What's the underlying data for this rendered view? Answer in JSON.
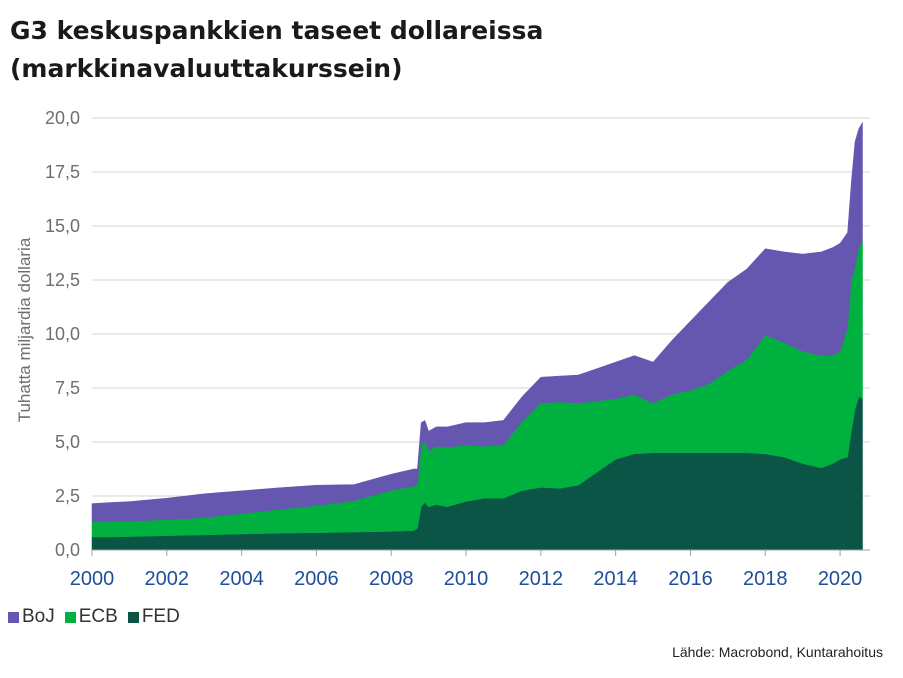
{
  "title": "G3 keskuspankkien taseet dollareissa (markkinavaluuttakurssein)",
  "source": "Lähde: Macrobond, Kuntarahoitus",
  "chart_data": {
    "type": "area",
    "stacked": true,
    "title": "G3 keskuspankkien taseet dollareissa (markkinavaluuttakurssein)",
    "xlabel": "",
    "ylabel": "Tuhatta miljardia dollaria",
    "xlim": [
      2000,
      2020.8
    ],
    "ylim": [
      0,
      20
    ],
    "x_ticks": [
      "2000",
      "2002",
      "2004",
      "2006",
      "2008",
      "2010",
      "2012",
      "2014",
      "2016",
      "2018",
      "2020"
    ],
    "y_ticks": [
      "0,0",
      "2,5",
      "5,0",
      "7,5",
      "10,0",
      "12,5",
      "15,0",
      "17,5",
      "20,0"
    ],
    "grid": "horizontal",
    "legend_position": "bottom-left",
    "x": [
      2000,
      2000.5,
      2001,
      2002,
      2003,
      2004,
      2005,
      2006,
      2007,
      2008,
      2008.6,
      2008.7,
      2008.8,
      2008.9,
      2009,
      2009.2,
      2009.5,
      2010,
      2010.5,
      2011,
      2011.5,
      2012,
      2012.5,
      2013,
      2013.5,
      2014,
      2014.5,
      2015,
      2015.5,
      2016,
      2016.5,
      2017,
      2017.5,
      2018,
      2018.5,
      2019,
      2019.5,
      2019.8,
      2020,
      2020.2,
      2020.3,
      2020.4,
      2020.5,
      2020.6
    ],
    "series": [
      {
        "name": "FED",
        "color": "#0a5546",
        "values": [
          0.6,
          0.6,
          0.62,
          0.66,
          0.7,
          0.74,
          0.78,
          0.8,
          0.83,
          0.86,
          0.9,
          1.0,
          2.0,
          2.2,
          2.0,
          2.1,
          2.0,
          2.25,
          2.4,
          2.4,
          2.75,
          2.9,
          2.85,
          3.0,
          3.6,
          4.2,
          4.45,
          4.5,
          4.5,
          4.5,
          4.5,
          4.5,
          4.5,
          4.45,
          4.3,
          4.0,
          3.8,
          4.0,
          4.2,
          4.3,
          5.5,
          6.5,
          7.1,
          7.0
        ]
      },
      {
        "name": "ECB",
        "color": "#00b140",
        "values": [
          0.7,
          0.7,
          0.72,
          0.74,
          0.8,
          0.95,
          1.1,
          1.25,
          1.45,
          1.9,
          2.05,
          2.0,
          2.9,
          2.8,
          2.6,
          2.7,
          2.75,
          2.6,
          2.4,
          2.45,
          3.2,
          3.9,
          4.0,
          3.8,
          3.3,
          2.8,
          2.75,
          2.3,
          2.7,
          2.9,
          3.2,
          3.8,
          4.3,
          5.5,
          5.3,
          5.2,
          5.2,
          5.0,
          5.0,
          6.0,
          7.0,
          6.6,
          6.9,
          7.3
        ]
      },
      {
        "name": "BoJ",
        "color": "#6556b0",
        "values": [
          0.85,
          0.9,
          0.9,
          1.0,
          1.1,
          1.05,
          1.0,
          0.95,
          0.75,
          0.75,
          0.8,
          0.75,
          1.0,
          1.0,
          0.9,
          0.9,
          0.95,
          1.05,
          1.1,
          1.15,
          1.15,
          1.2,
          1.2,
          1.3,
          1.5,
          1.7,
          1.8,
          1.9,
          2.5,
          3.2,
          3.8,
          4.1,
          4.2,
          4.0,
          4.2,
          4.5,
          4.8,
          5.0,
          5.0,
          4.4,
          4.5,
          5.8,
          5.5,
          5.5
        ]
      }
    ]
  }
}
